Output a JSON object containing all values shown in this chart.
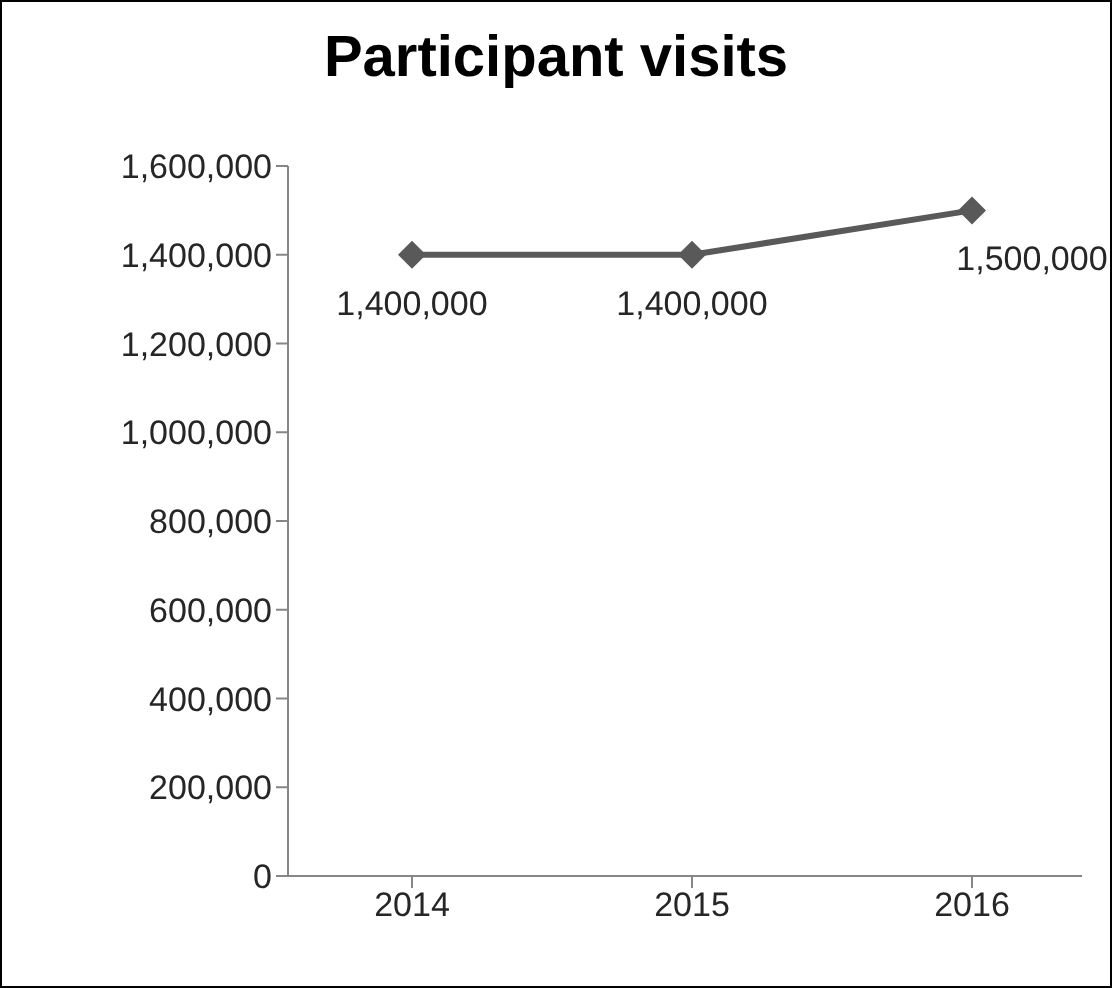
{
  "chart_data": {
    "type": "line",
    "title": "Participant visits",
    "categories": [
      "2014",
      "2015",
      "2016"
    ],
    "series": [
      {
        "color": "#595959",
        "values": [
          1400000,
          1400000,
          1500000
        ],
        "value_labels": [
          "1,400,000",
          "1,400,000",
          "1,500,000"
        ]
      }
    ],
    "ylim": [
      0,
      1600000
    ],
    "yticks": [
      0,
      {
        "value": 200000,
        "label": "200,000"
      },
      {
        "value": 400000,
        "label": "400,000"
      },
      {
        "value": 600000,
        "label": "600,000"
      },
      {
        "value": 800000,
        "label": "800,000"
      },
      {
        "value": 1000000,
        "label": "1,000,000"
      },
      {
        "value": 1200000,
        "label": "1,200,000"
      },
      {
        "value": 1400000,
        "label": "1,400,000"
      },
      {
        "value": 1600000,
        "label": "1,600,000"
      }
    ],
    "grid": false,
    "legend": false,
    "marker": "diamond",
    "line_style": "solid"
  }
}
